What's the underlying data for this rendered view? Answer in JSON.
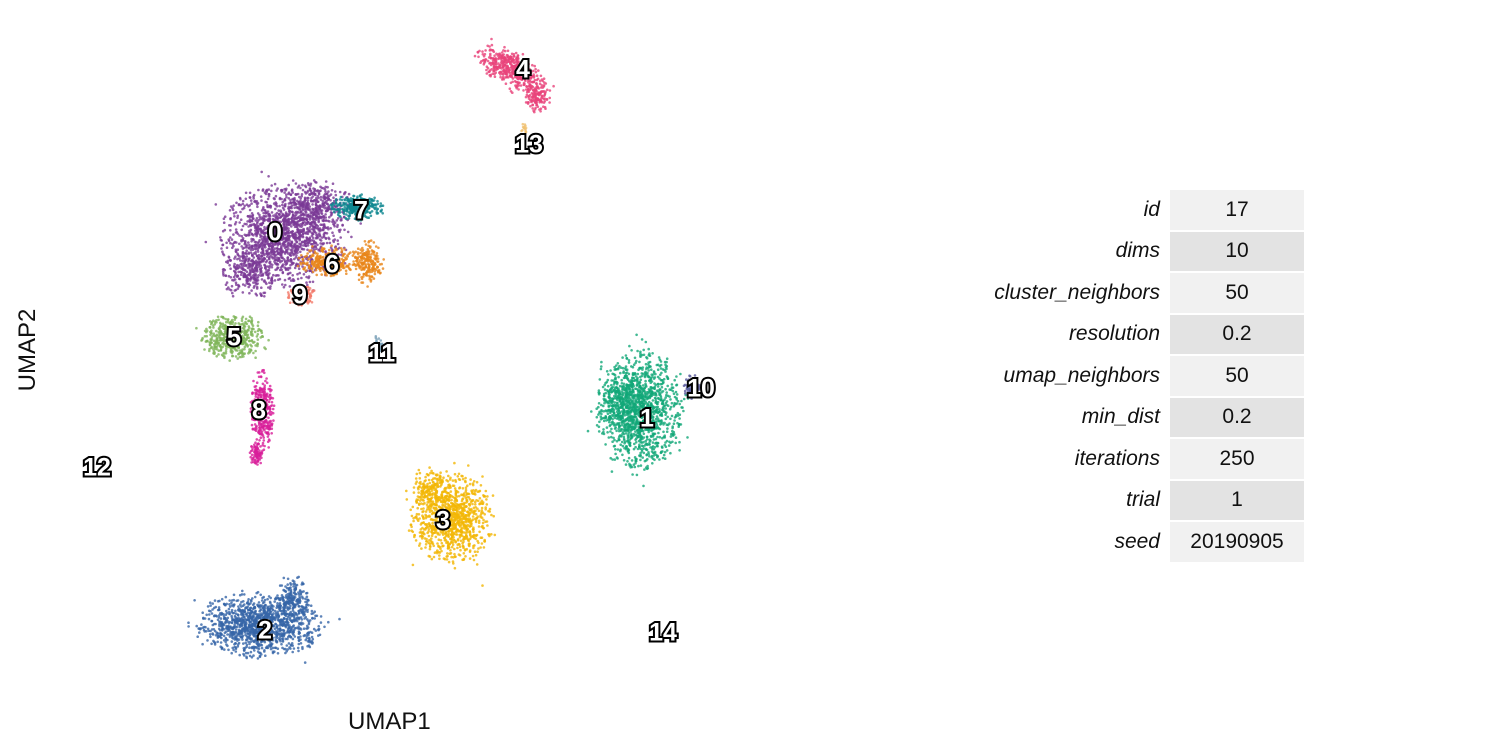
{
  "chart_data": {
    "type": "scatter",
    "xlabel": "UMAP1",
    "ylabel": "UMAP2",
    "grid": false,
    "legend": "none",
    "clusters": [
      {
        "label": "0",
        "color": "#7b3a96"
      },
      {
        "label": "1",
        "color": "#12a878"
      },
      {
        "label": "2",
        "color": "#3665a8"
      },
      {
        "label": "3",
        "color": "#f2b705"
      },
      {
        "label": "4",
        "color": "#e8437a"
      },
      {
        "label": "5",
        "color": "#7fb55a"
      },
      {
        "label": "6",
        "color": "#e8861a"
      },
      {
        "label": "7",
        "color": "#0f8790"
      },
      {
        "label": "8",
        "color": "#d81f9a"
      },
      {
        "label": "9",
        "color": "#f47c6c"
      },
      {
        "label": "10",
        "color": "#5b5b9e"
      },
      {
        "label": "11",
        "color": "#7aa0b8"
      },
      {
        "label": "12",
        "color": "#999999"
      },
      {
        "label": "13",
        "color": "#f0c070"
      },
      {
        "label": "14",
        "color": "#999999"
      }
    ]
  },
  "params": [
    {
      "name": "id",
      "value": "17"
    },
    {
      "name": "dims",
      "value": "10"
    },
    {
      "name": "cluster_neighbors",
      "value": "50"
    },
    {
      "name": "resolution",
      "value": "0.2"
    },
    {
      "name": "umap_neighbors",
      "value": "50"
    },
    {
      "name": "min_dist",
      "value": "0.2"
    },
    {
      "name": "iterations",
      "value": "250"
    },
    {
      "name": "trial",
      "value": "1"
    },
    {
      "name": "seed",
      "value": "20190905"
    }
  ]
}
